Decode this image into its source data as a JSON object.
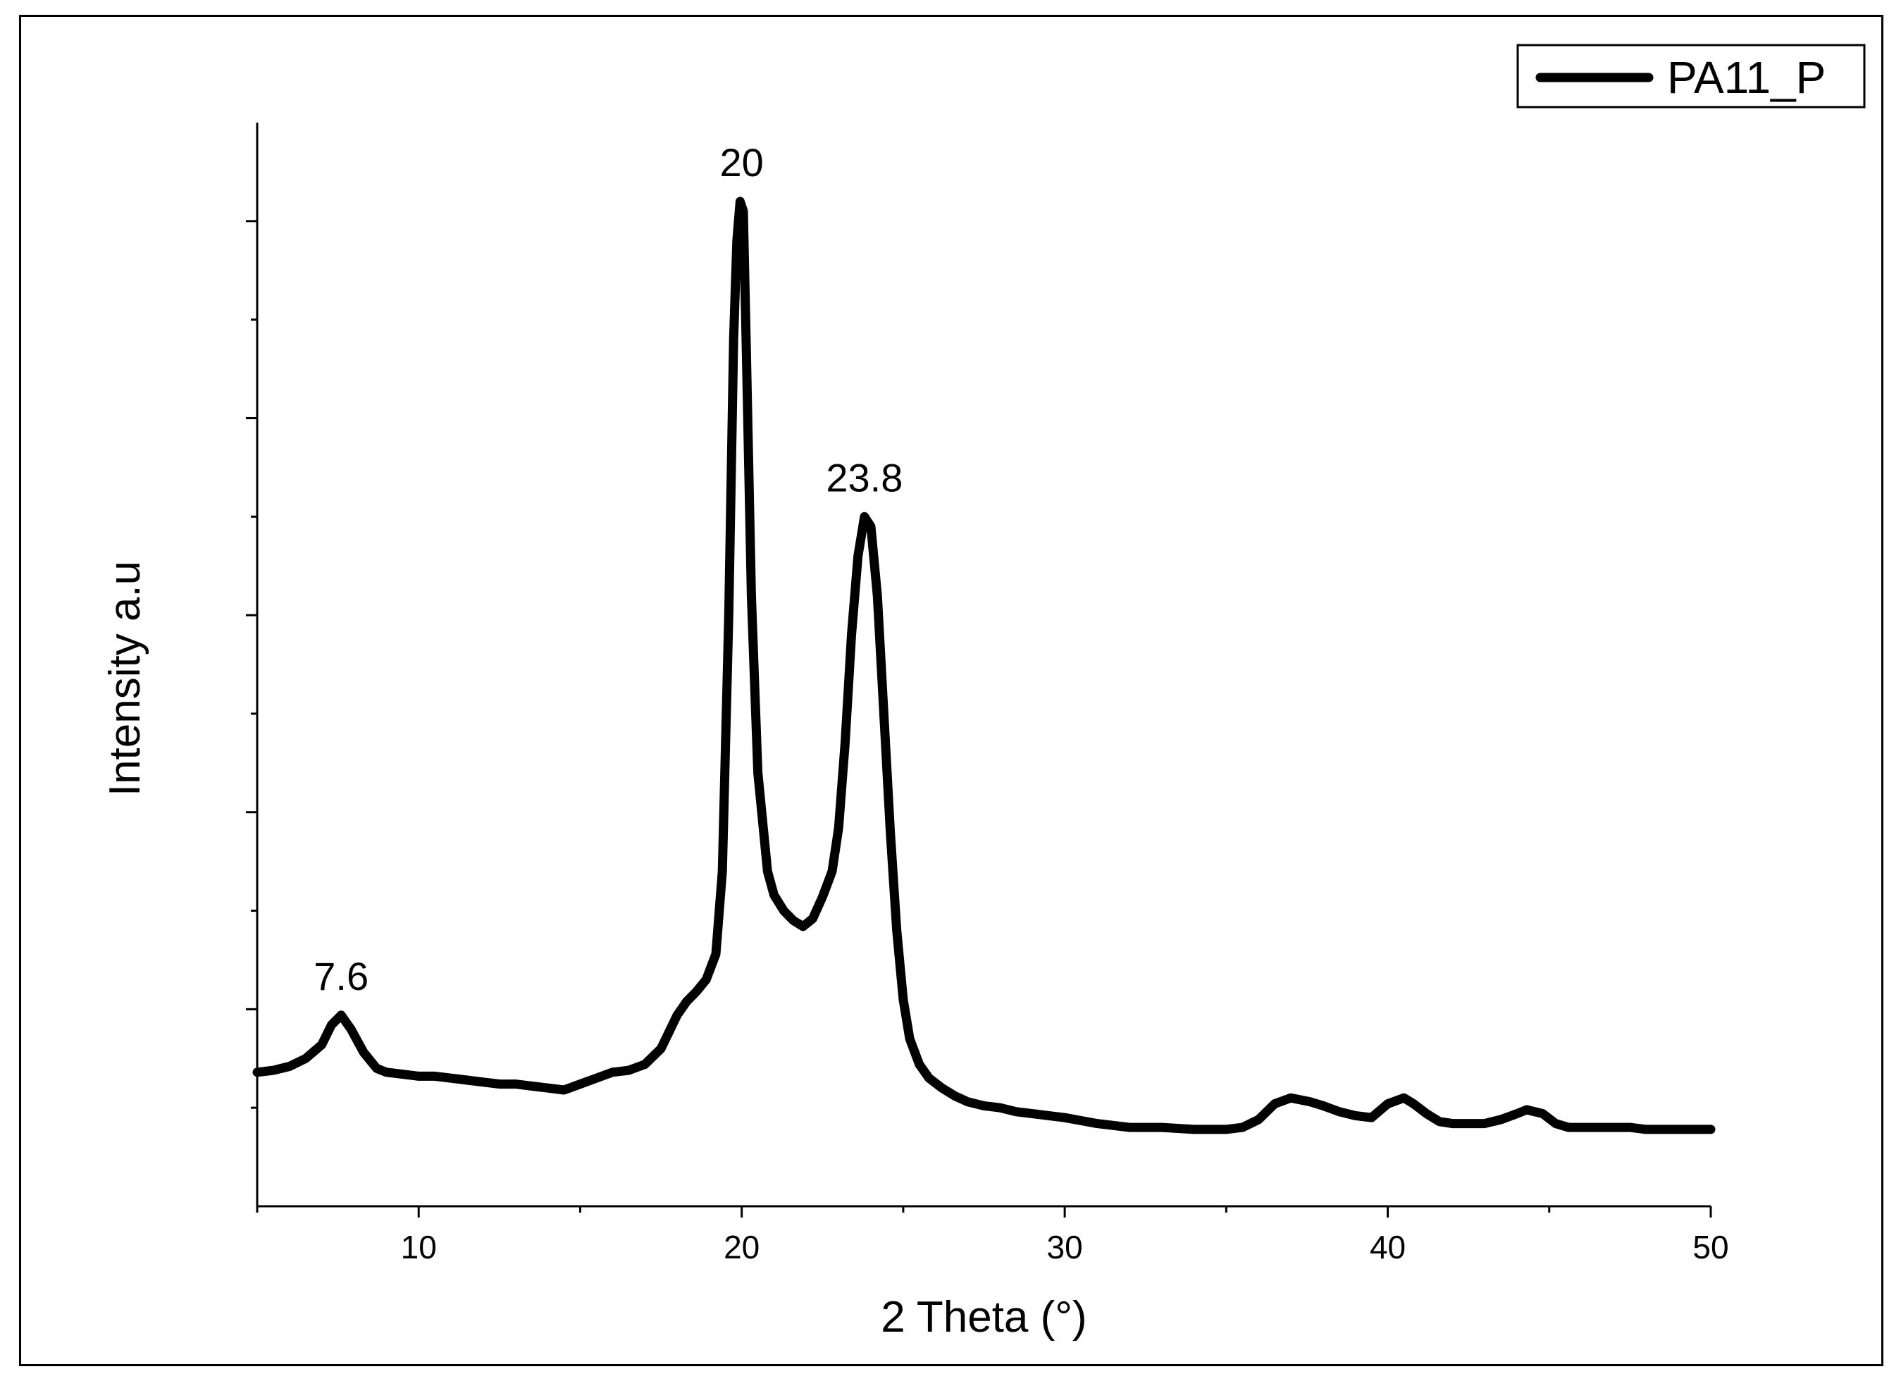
{
  "chart_data": {
    "type": "line",
    "title": "",
    "xlabel": "2 Theta (°)",
    "ylabel": "Intensity a.u",
    "xlim": [
      5,
      50
    ],
    "ylim": [
      0,
      5.5
    ],
    "x_major_ticks": [
      10,
      20,
      30,
      40,
      50
    ],
    "x_tick_labels": [
      "10",
      "20",
      "30",
      "40",
      "50"
    ],
    "x_minor_ticks": [
      5,
      15,
      25,
      35,
      45
    ],
    "y_major_ticks": [
      1,
      2,
      3,
      4,
      5
    ],
    "y_minor_ticks": [
      0.5,
      1.5,
      2.5,
      3.5,
      4.5
    ],
    "y_tick_labels_shown": false,
    "grid": false,
    "legend_position": "top-right",
    "series": [
      {
        "name": "PA11_P",
        "color": "#000000",
        "x": [
          5.0,
          5.5,
          6.0,
          6.5,
          7.0,
          7.3,
          7.6,
          7.9,
          8.3,
          8.7,
          9.0,
          9.5,
          10.0,
          10.5,
          11.0,
          11.5,
          12.0,
          12.5,
          13.0,
          13.5,
          14.0,
          14.5,
          15.0,
          15.5,
          16.0,
          16.5,
          17.0,
          17.5,
          18.0,
          18.3,
          18.6,
          18.9,
          19.2,
          19.4,
          19.6,
          19.75,
          19.85,
          19.95,
          20.05,
          20.15,
          20.3,
          20.5,
          20.8,
          21.0,
          21.3,
          21.6,
          21.9,
          22.2,
          22.5,
          22.8,
          23.0,
          23.2,
          23.4,
          23.6,
          23.8,
          24.0,
          24.2,
          24.4,
          24.6,
          24.8,
          25.0,
          25.2,
          25.5,
          25.8,
          26.2,
          26.6,
          27.0,
          27.5,
          28.0,
          28.5,
          29.0,
          29.5,
          30.0,
          31.0,
          32.0,
          33.0,
          34.0,
          35.0,
          35.5,
          36.0,
          36.5,
          37.0,
          37.3,
          37.6,
          38.0,
          38.5,
          39.0,
          39.5,
          40.0,
          40.5,
          40.8,
          41.2,
          41.6,
          42.0,
          42.5,
          43.0,
          43.5,
          44.0,
          44.3,
          44.8,
          45.2,
          45.6,
          46.0,
          46.5,
          47.0,
          47.5,
          48.0,
          48.5,
          49.0,
          49.5,
          50.0
        ],
        "y": [
          0.68,
          0.69,
          0.71,
          0.75,
          0.82,
          0.92,
          0.97,
          0.9,
          0.78,
          0.7,
          0.68,
          0.67,
          0.66,
          0.66,
          0.65,
          0.64,
          0.63,
          0.62,
          0.62,
          0.61,
          0.6,
          0.59,
          0.62,
          0.65,
          0.68,
          0.69,
          0.72,
          0.8,
          0.97,
          1.04,
          1.09,
          1.15,
          1.28,
          1.7,
          3.0,
          4.4,
          4.9,
          5.1,
          5.05,
          4.3,
          3.1,
          2.2,
          1.7,
          1.58,
          1.5,
          1.45,
          1.42,
          1.46,
          1.57,
          1.7,
          1.92,
          2.35,
          2.9,
          3.3,
          3.5,
          3.45,
          3.1,
          2.5,
          1.9,
          1.4,
          1.05,
          0.85,
          0.72,
          0.65,
          0.6,
          0.56,
          0.53,
          0.51,
          0.5,
          0.48,
          0.47,
          0.46,
          0.45,
          0.42,
          0.4,
          0.4,
          0.39,
          0.39,
          0.4,
          0.44,
          0.52,
          0.55,
          0.54,
          0.53,
          0.51,
          0.48,
          0.46,
          0.45,
          0.52,
          0.55,
          0.52,
          0.47,
          0.43,
          0.42,
          0.42,
          0.42,
          0.44,
          0.47,
          0.49,
          0.47,
          0.42,
          0.4,
          0.4,
          0.4,
          0.4,
          0.4,
          0.39,
          0.39,
          0.39,
          0.39,
          0.39
        ]
      }
    ],
    "annotations": [
      {
        "text": "7.6",
        "x": 7.6,
        "y": 0.97
      },
      {
        "text": "20",
        "x": 20.0,
        "y": 5.1
      },
      {
        "text": "23.8",
        "x": 23.8,
        "y": 3.5
      }
    ]
  }
}
